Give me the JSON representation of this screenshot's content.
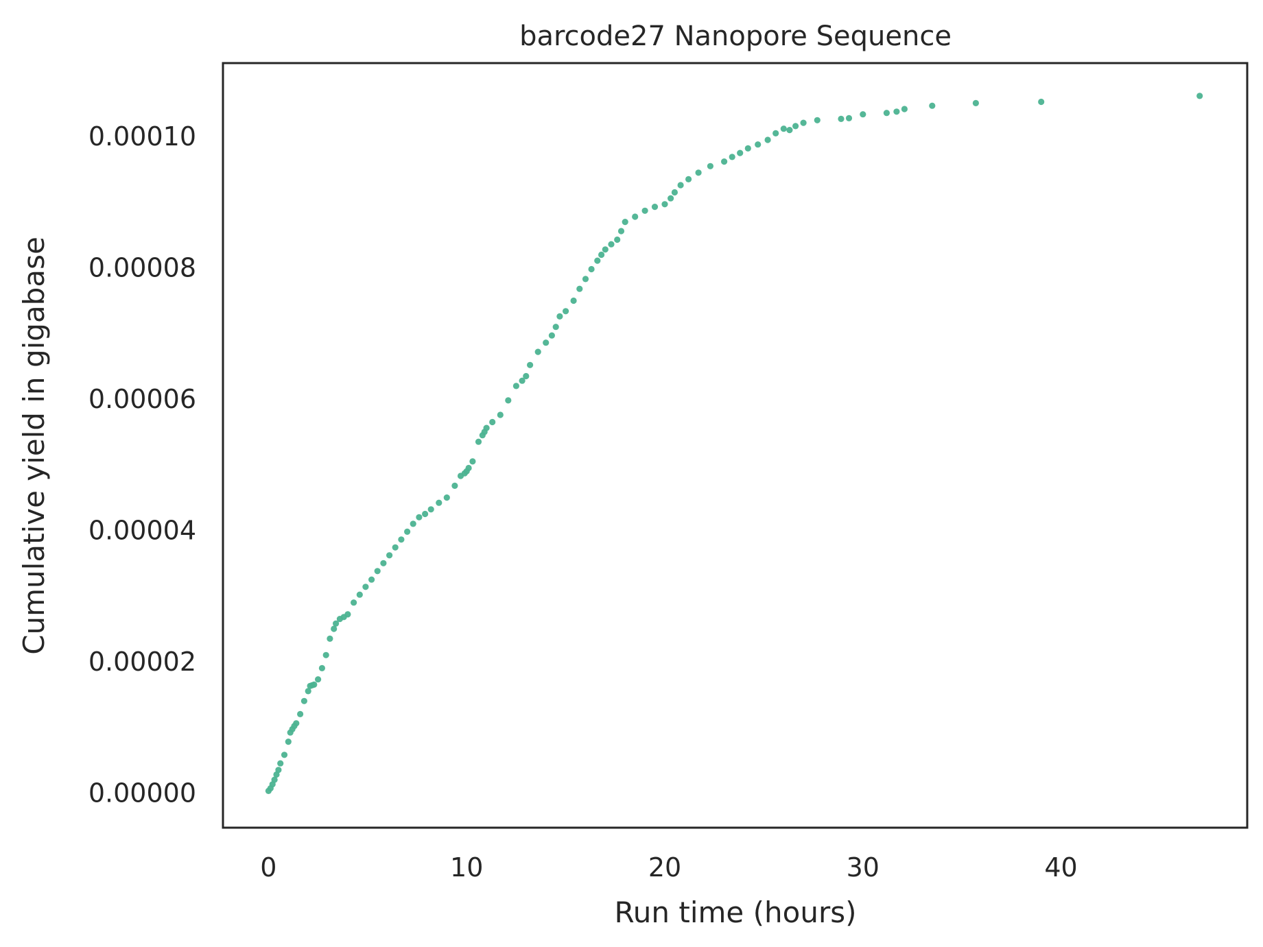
{
  "chart_data": {
    "type": "scatter",
    "title": "barcode27 Nanopore Sequence",
    "xlabel": "Run time (hours)",
    "ylabel": "Cumulative yield in gigabase",
    "xlim": [
      -2.3,
      49.4
    ],
    "ylim": [
      -5.3e-06,
      0.0001112
    ],
    "x_ticks": [
      0,
      10,
      20,
      30,
      40
    ],
    "x_tick_labels": [
      "0",
      "10",
      "20",
      "30",
      "40"
    ],
    "y_ticks": [
      0,
      2e-05,
      4e-05,
      6e-05,
      8e-05,
      0.0001
    ],
    "y_tick_labels": [
      "0.00000",
      "0.00002",
      "0.00004",
      "0.00006",
      "0.00008",
      "0.00010"
    ],
    "grid": false,
    "legend": "none",
    "point_color": "#4cb391",
    "series": [
      {
        "x": [
          0.0,
          0.1,
          0.2,
          0.3,
          0.4,
          0.5,
          0.6,
          0.8,
          1.0,
          1.1,
          1.2,
          1.3,
          1.4,
          1.6,
          1.8,
          2.0,
          2.1,
          2.2,
          2.3,
          2.5,
          2.7,
          2.9,
          3.1,
          3.3,
          3.4,
          3.6,
          3.8,
          4.0,
          4.3,
          4.6,
          4.9,
          5.2,
          5.5,
          5.8,
          6.1,
          6.4,
          6.7,
          7.0,
          7.3,
          7.6,
          7.9,
          8.2,
          8.6,
          9.0,
          9.4,
          9.7,
          9.9,
          10.0,
          10.1,
          10.3,
          10.6,
          10.8,
          10.9,
          11.0,
          11.3,
          11.7,
          12.1,
          12.5,
          12.8,
          13.0,
          13.2,
          13.6,
          14.0,
          14.3,
          14.5,
          14.7,
          15.0,
          15.4,
          15.7,
          16.0,
          16.3,
          16.6,
          16.8,
          17.0,
          17.3,
          17.6,
          17.8,
          18.0,
          18.5,
          19.0,
          19.5,
          20.0,
          20.3,
          20.5,
          20.8,
          21.2,
          21.7,
          22.3,
          23.0,
          23.4,
          23.8,
          24.2,
          24.7,
          25.2,
          25.6,
          26.0,
          26.3,
          26.6,
          27.0,
          27.7,
          28.9,
          29.3,
          30.0,
          31.2,
          31.7,
          32.1,
          33.5,
          35.7,
          39.0,
          47.0
        ],
        "y": [
          3e-07,
          7e-07,
          1.3e-06,
          2e-06,
          2.8e-06,
          3.5e-06,
          4.5e-06,
          5.8e-06,
          7.8e-06,
          9.2e-06,
          9.7e-06,
          1.02e-05,
          1.06e-05,
          1.2e-05,
          1.4e-05,
          1.55e-05,
          1.63e-05,
          1.64e-05,
          1.65e-05,
          1.73e-05,
          1.9e-05,
          2.1e-05,
          2.35e-05,
          2.5e-05,
          2.58e-05,
          2.65e-05,
          2.68e-05,
          2.72e-05,
          2.9e-05,
          3.02e-05,
          3.14e-05,
          3.25e-05,
          3.38e-05,
          3.5e-05,
          3.62e-05,
          3.74e-05,
          3.86e-05,
          3.98e-05,
          4.1e-05,
          4.2e-05,
          4.25e-05,
          4.32e-05,
          4.42e-05,
          4.5e-05,
          4.68e-05,
          4.83e-05,
          4.87e-05,
          4.9e-05,
          4.95e-05,
          5.05e-05,
          5.35e-05,
          5.45e-05,
          5.5e-05,
          5.56e-05,
          5.65e-05,
          5.76e-05,
          5.98e-05,
          6.2e-05,
          6.28e-05,
          6.35e-05,
          6.52e-05,
          6.72e-05,
          6.86e-05,
          6.97e-05,
          7.1e-05,
          7.26e-05,
          7.34e-05,
          7.5e-05,
          7.68e-05,
          7.83e-05,
          7.98e-05,
          8.11e-05,
          8.2e-05,
          8.28e-05,
          8.36e-05,
          8.43e-05,
          8.56e-05,
          8.7e-05,
          8.78e-05,
          8.87e-05,
          8.93e-05,
          8.97e-05,
          9.06e-05,
          9.15e-05,
          9.26e-05,
          9.35e-05,
          9.45e-05,
          9.55e-05,
          9.62e-05,
          9.69e-05,
          9.75e-05,
          9.82e-05,
          9.88e-05,
          9.95e-05,
          0.0001005,
          0.0001012,
          0.000101,
          0.0001016,
          0.0001021,
          0.0001025,
          0.0001027,
          0.0001028,
          0.0001034,
          0.0001036,
          0.0001038,
          0.0001042,
          0.0001047,
          0.0001051,
          0.0001053,
          0.0001062
        ]
      }
    ]
  }
}
